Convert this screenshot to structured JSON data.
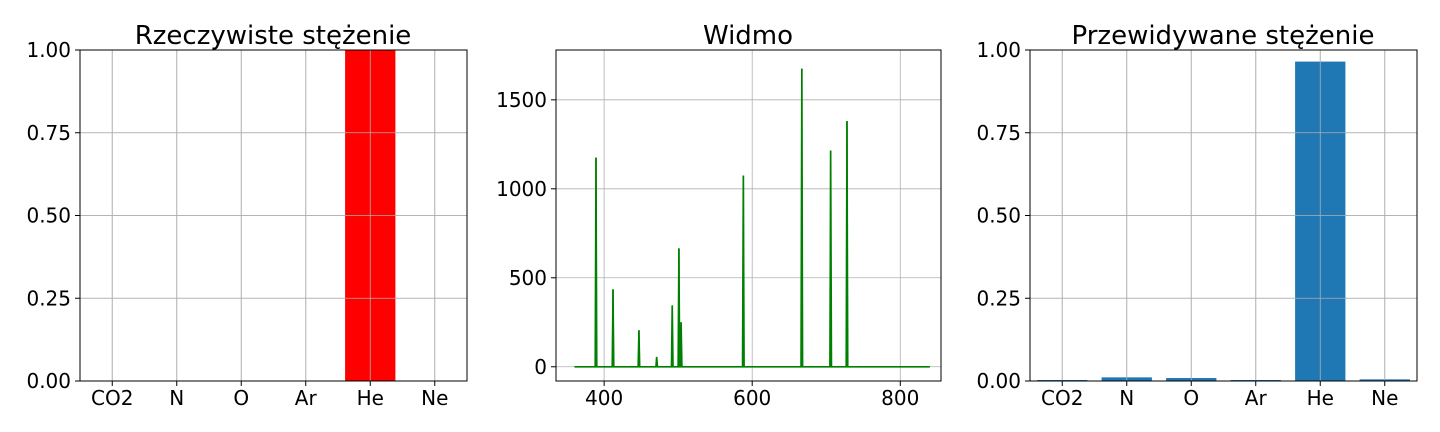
{
  "chart_data": [
    {
      "type": "bar",
      "title": "Rzeczywiste stężenie",
      "categories": [
        "CO2",
        "N",
        "O",
        "Ar",
        "He",
        "Ne"
      ],
      "values": [
        0,
        0,
        0,
        0,
        1.0,
        0
      ],
      "ylim": [
        0,
        1
      ],
      "yticks": [
        "0.00",
        "0.25",
        "0.50",
        "0.75",
        "1.00"
      ],
      "grid": true,
      "color": "#ff0000"
    },
    {
      "type": "line",
      "title": "Widmo",
      "xlim": [
        335,
        855
      ],
      "ylim": [
        -80,
        1780
      ],
      "xticks": [
        400,
        600,
        800
      ],
      "yticks": [
        0,
        500,
        1000,
        1500
      ],
      "grid": true,
      "color": "#008000",
      "baseline": [
        360,
        840
      ],
      "peaks": [
        {
          "x": 389,
          "y": 1175
        },
        {
          "x": 412,
          "y": 435
        },
        {
          "x": 447,
          "y": 205
        },
        {
          "x": 471,
          "y": 55
        },
        {
          "x": 492,
          "y": 345
        },
        {
          "x": 501,
          "y": 665
        },
        {
          "x": 504,
          "y": 250
        },
        {
          "x": 588,
          "y": 1075
        },
        {
          "x": 667,
          "y": 1675
        },
        {
          "x": 706,
          "y": 1215
        },
        {
          "x": 728,
          "y": 1380
        }
      ]
    },
    {
      "type": "bar",
      "title": "Przewidywane stężenie",
      "categories": [
        "CO2",
        "N",
        "O",
        "Ar",
        "He",
        "Ne"
      ],
      "values": [
        0.003,
        0.011,
        0.009,
        0.003,
        0.965,
        0.005
      ],
      "ylim": [
        0,
        1
      ],
      "yticks": [
        "0.00",
        "0.25",
        "0.50",
        "0.75",
        "1.00"
      ],
      "grid": true,
      "color": "#1f77b4"
    }
  ]
}
